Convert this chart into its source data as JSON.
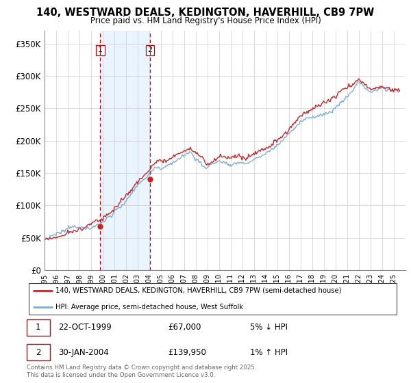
{
  "title": "140, WESTWARD DEALS, KEDINGTON, HAVERHILL, CB9 7PW",
  "subtitle": "Price paid vs. HM Land Registry's House Price Index (HPI)",
  "ylim": [
    0,
    370000
  ],
  "yticks": [
    0,
    50000,
    100000,
    150000,
    200000,
    250000,
    300000,
    350000
  ],
  "ytick_labels": [
    "£0",
    "£50K",
    "£100K",
    "£150K",
    "£200K",
    "£250K",
    "£300K",
    "£350K"
  ],
  "hpi_color": "#7aaed6",
  "price_color": "#cc2222",
  "marker_color": "#cc2222",
  "vline_color": "#cc0000",
  "bg_shaded": "#ddeeff",
  "t1_year": 1999.8,
  "t2_year": 2004.08,
  "t1_price": 67000,
  "t2_price": 139950,
  "legend_line1": "140, WESTWARD DEALS, KEDINGTON, HAVERHILL, CB9 7PW (semi-detached house)",
  "legend_line2": "HPI: Average price, semi-detached house, West Suffolk",
  "footnote": "Contains HM Land Registry data © Crown copyright and database right 2025.\nThis data is licensed under the Open Government Licence v3.0.",
  "t1_date_str": "22-OCT-1999",
  "t1_price_str": "£67,000",
  "t1_hpi_str": "5% ↓ HPI",
  "t2_date_str": "30-JAN-2004",
  "t2_price_str": "£139,950",
  "t2_hpi_str": "1% ↑ HPI"
}
